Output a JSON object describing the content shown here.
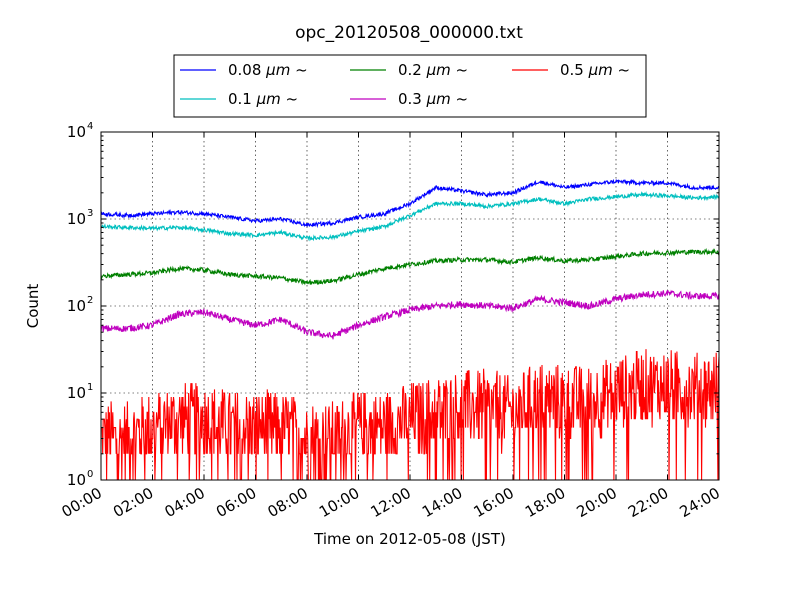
{
  "chart_data": {
    "type": "line",
    "title": "opc_20120508_000000.txt",
    "xlabel": "Time on 2012-05-08 (JST)",
    "ylabel": "Count",
    "xlim": [
      0,
      24
    ],
    "ylim": [
      1,
      10000
    ],
    "yscale": "log",
    "grid": true,
    "legend_position": "top-center, outside plot",
    "x_ticks": [
      "00:00",
      "02:00",
      "04:00",
      "06:00",
      "08:00",
      "10:00",
      "12:00",
      "14:00",
      "16:00",
      "18:00",
      "20:00",
      "22:00",
      "24:00"
    ],
    "y_ticks": [
      {
        "base": "10",
        "exp": "0"
      },
      {
        "base": "10",
        "exp": "1"
      },
      {
        "base": "10",
        "exp": "2"
      },
      {
        "base": "10",
        "exp": "3"
      },
      {
        "base": "10",
        "exp": "4"
      }
    ],
    "x_hours": [
      0,
      1,
      2,
      3,
      4,
      5,
      6,
      7,
      8,
      9,
      10,
      11,
      12,
      13,
      14,
      15,
      16,
      17,
      18,
      19,
      20,
      21,
      22,
      23,
      24
    ],
    "series": [
      {
        "name": "0.08 μm ~",
        "legend_main": "0.08 ",
        "legend_unit": "μm",
        "legend_tail": " ~",
        "color": "#0000ff",
        "values": [
          1150,
          1100,
          1150,
          1200,
          1150,
          1050,
          950,
          1000,
          850,
          900,
          1050,
          1150,
          1500,
          2300,
          2100,
          1900,
          2000,
          2700,
          2300,
          2500,
          2700,
          2600,
          2600,
          2300,
          2300
        ],
        "noise": 0.05
      },
      {
        "name": "0.1 μm ~",
        "legend_main": "0.1 ",
        "legend_unit": "μm",
        "legend_tail": " ~",
        "color": "#00bfbf",
        "values": [
          820,
          800,
          780,
          800,
          750,
          680,
          650,
          700,
          600,
          620,
          720,
          820,
          1100,
          1500,
          1500,
          1400,
          1500,
          1700,
          1500,
          1700,
          1800,
          1900,
          1850,
          1750,
          1800
        ],
        "noise": 0.05
      },
      {
        "name": "0.2 μm ~",
        "legend_main": "0.2 ",
        "legend_unit": "μm",
        "legend_tail": " ~",
        "color": "#008000",
        "values": [
          220,
          230,
          240,
          270,
          260,
          230,
          220,
          210,
          185,
          195,
          230,
          270,
          300,
          330,
          340,
          340,
          320,
          360,
          330,
          340,
          370,
          400,
          410,
          420,
          420
        ],
        "noise": 0.06
      },
      {
        "name": "0.3 μm ~",
        "legend_main": "0.3 ",
        "legend_unit": "μm",
        "legend_tail": " ~",
        "color": "#bf00bf",
        "values": [
          55,
          55,
          60,
          80,
          85,
          70,
          60,
          70,
          50,
          45,
          60,
          75,
          90,
          100,
          105,
          100,
          95,
          120,
          110,
          100,
          120,
          135,
          140,
          130,
          130
        ],
        "noise": 0.09
      },
      {
        "name": "0.5 μm ~",
        "legend_main": "0.5 ",
        "legend_unit": "μm",
        "legend_tail": " ~",
        "color": "#ff0000",
        "values": [
          3,
          3,
          4,
          5,
          5,
          4,
          4,
          4,
          3,
          3,
          4,
          4,
          5,
          6,
          7,
          7,
          6,
          9,
          8,
          8,
          10,
          12,
          12,
          11,
          12
        ],
        "noise": 0.45
      }
    ]
  }
}
